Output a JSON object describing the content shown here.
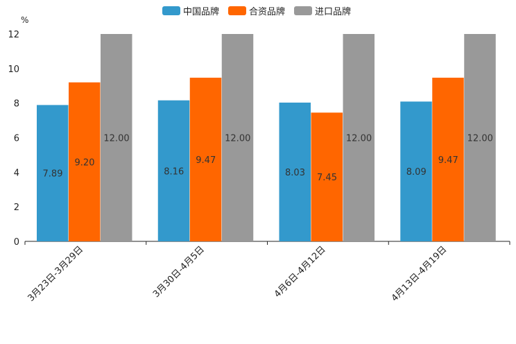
{
  "chart_data": {
    "type": "bar",
    "ylabel": "%",
    "ylim": [
      0,
      12
    ],
    "yticks": [
      0,
      2,
      4,
      6,
      8,
      10,
      12
    ],
    "categories": [
      "3月23日-3月29日",
      "3月30日-4月5日",
      "4月6日-4月12日",
      "4月13日-4月19日"
    ],
    "series": [
      {
        "name": "中国品牌",
        "color": "#3399CC",
        "values": [
          7.89,
          8.16,
          8.03,
          8.09
        ],
        "labels": [
          "7.89",
          "8.16",
          "8.03",
          "8.09"
        ]
      },
      {
        "name": "合资品牌",
        "color": "#FF6600",
        "values": [
          9.2,
          9.47,
          7.45,
          9.47
        ],
        "labels": [
          "9.20",
          "9.47",
          "7.45",
          "9.47"
        ]
      },
      {
        "name": "进口品牌",
        "color": "#999999",
        "values": [
          12.0,
          12.0,
          12.0,
          12.0
        ],
        "labels": [
          "12.00",
          "12.00",
          "12.00",
          "12.00"
        ]
      }
    ],
    "legend_position": "top-center",
    "grid": false
  }
}
